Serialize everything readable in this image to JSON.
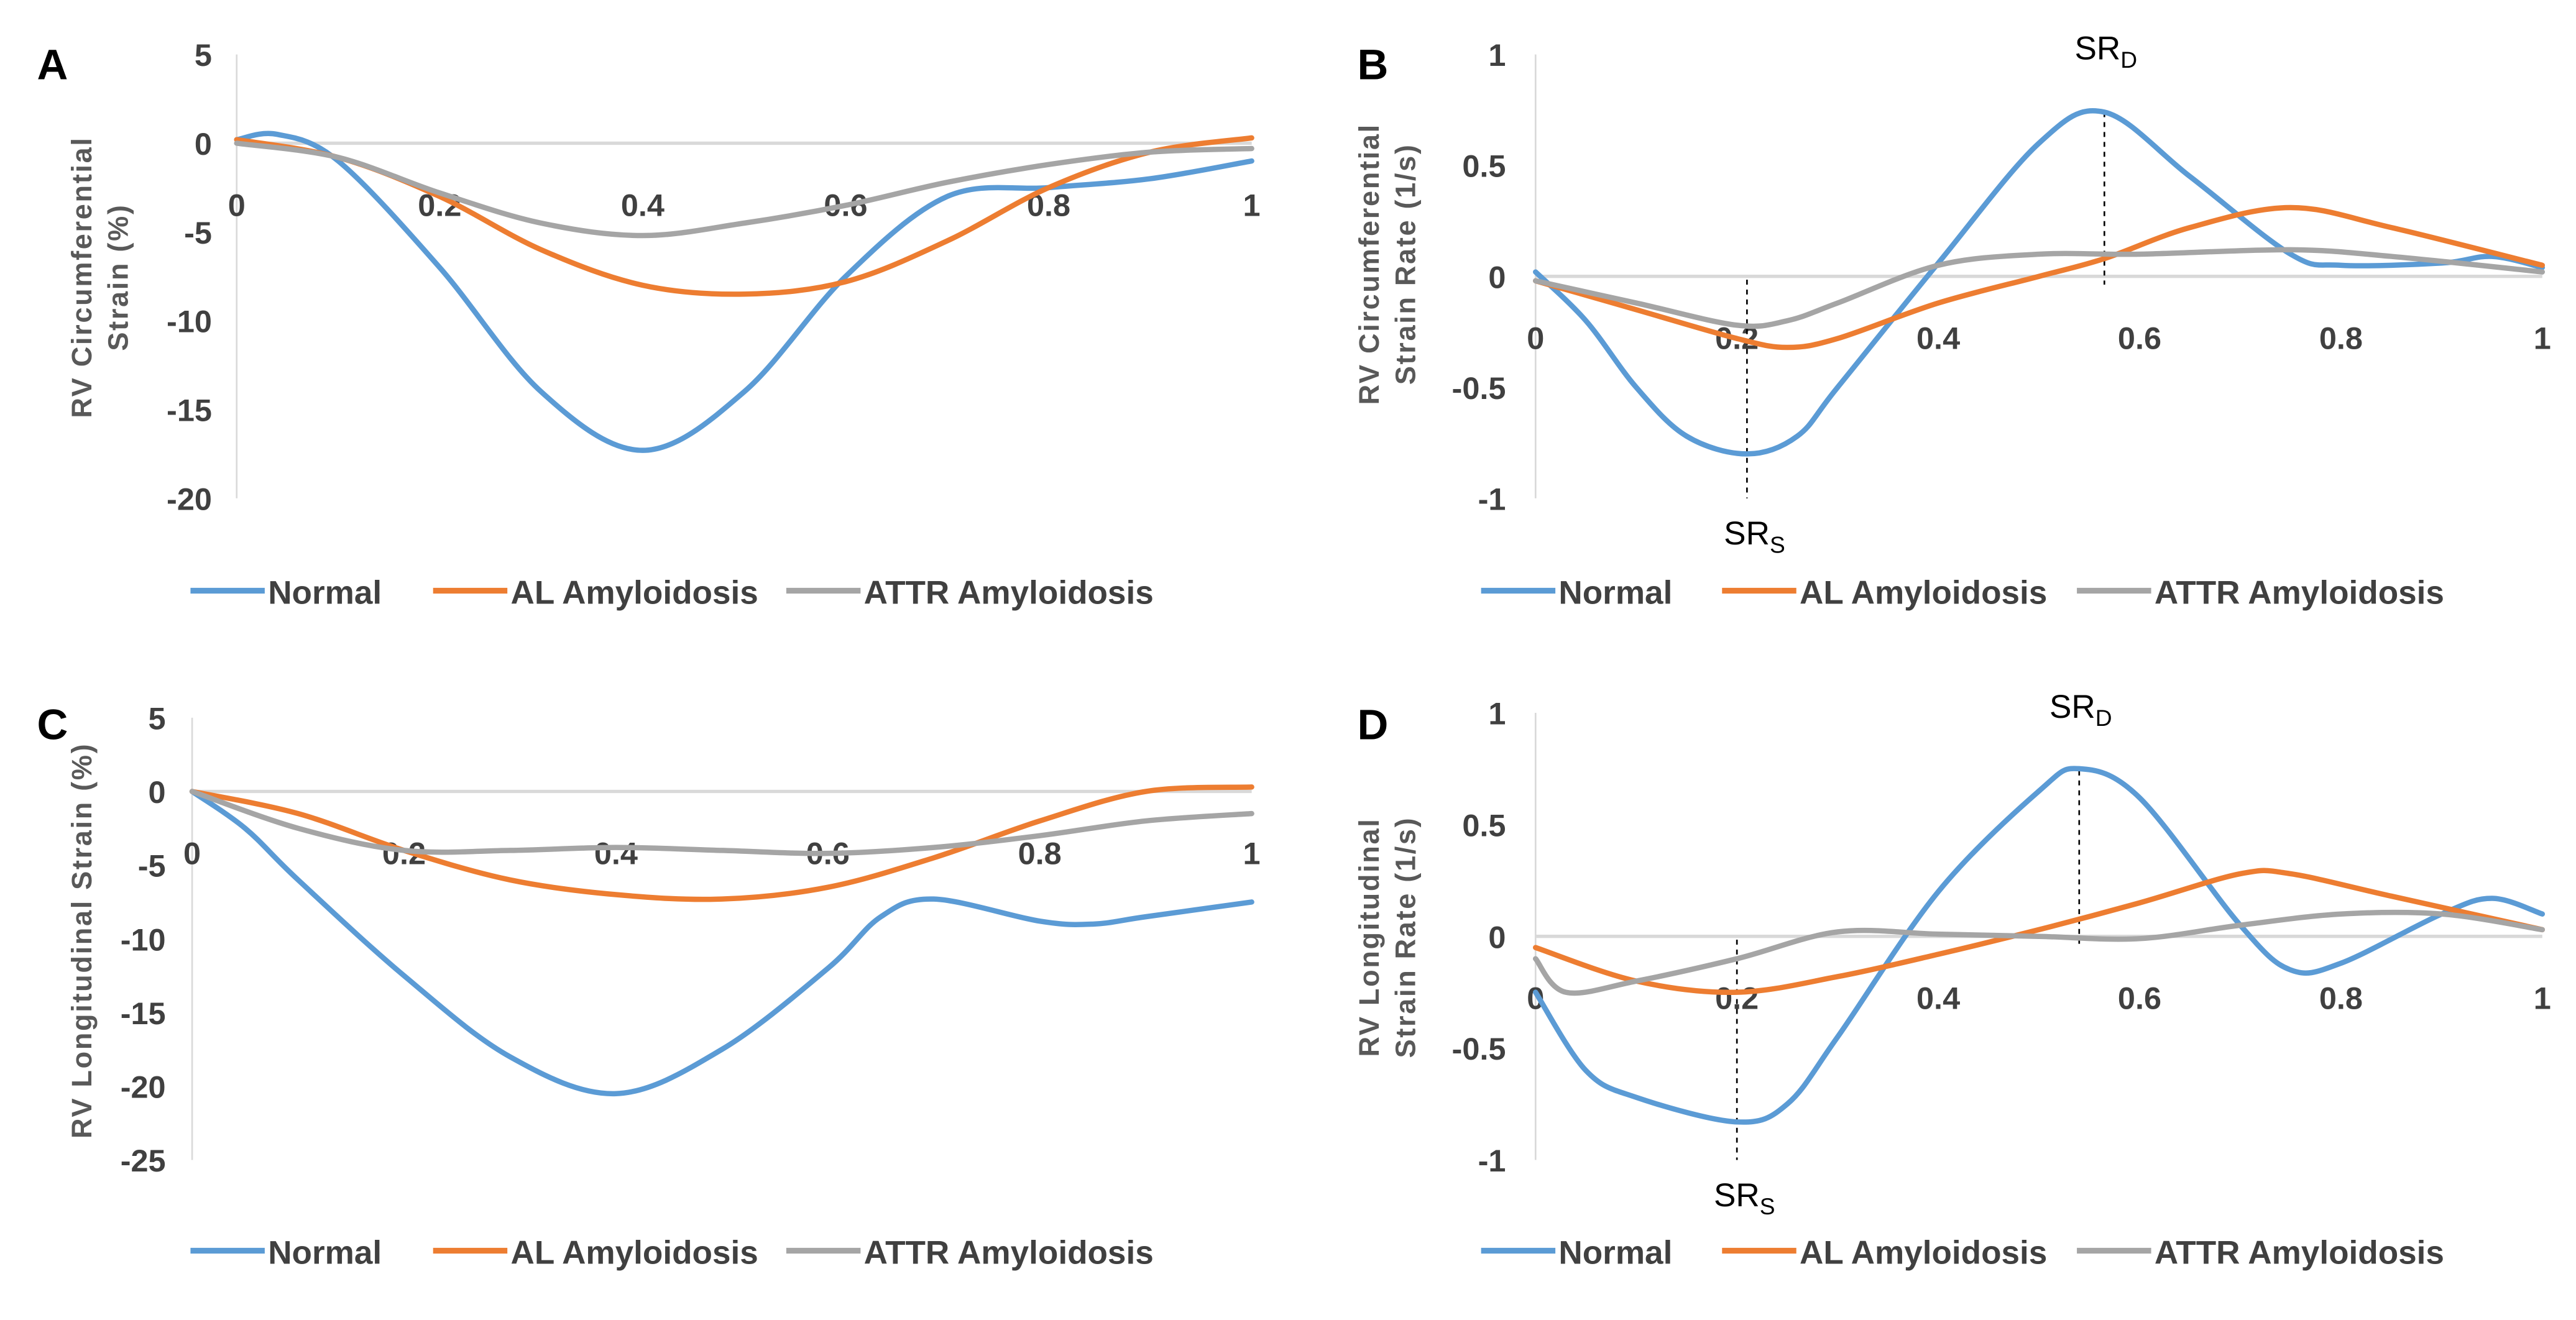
{
  "colors": {
    "Normal": "#5b9bd5",
    "AL Amyloidosis": "#ed7d31",
    "ATTR Amyloidosis": "#a5a5a5",
    "zero_line": "#d9d9d9"
  },
  "chart_data": [
    {
      "panel": "A",
      "type": "line",
      "title": "",
      "xlabel": "",
      "ylabel": "RV Circumferential Strain (%)",
      "ylabel_lines": [
        "RV Circumferential",
        "Strain (%)"
      ],
      "xlim": [
        0,
        1
      ],
      "ylim": [
        -20,
        5
      ],
      "xticks": [
        "0",
        "0.2",
        "0.4",
        "0.6",
        "0.8",
        "1"
      ],
      "xtick_values": [
        0,
        0.2,
        0.4,
        0.6,
        0.8,
        1
      ],
      "yticks": [
        "5",
        "0",
        "-5",
        "-10",
        "-15",
        "-20"
      ],
      "ytick_values": [
        5,
        0,
        -5,
        -10,
        -15,
        -20
      ],
      "legend": [
        "Normal",
        "AL Amyloidosis",
        "ATTR Amyloidosis"
      ],
      "legend_position": "bottom",
      "series": [
        {
          "name": "Normal",
          "points": [
            [
              0,
              0.2
            ],
            [
              0.04,
              0.5
            ],
            [
              0.1,
              -1
            ],
            [
              0.2,
              -7
            ],
            [
              0.3,
              -14
            ],
            [
              0.4,
              -17.3
            ],
            [
              0.5,
              -14
            ],
            [
              0.6,
              -7.5
            ],
            [
              0.7,
              -3
            ],
            [
              0.8,
              -2.5
            ],
            [
              0.9,
              -2
            ],
            [
              1,
              -1
            ]
          ]
        },
        {
          "name": "AL Amyloidosis",
          "points": [
            [
              0,
              0.2
            ],
            [
              0.1,
              -0.8
            ],
            [
              0.2,
              -3
            ],
            [
              0.3,
              -6
            ],
            [
              0.4,
              -8
            ],
            [
              0.5,
              -8.5
            ],
            [
              0.6,
              -7.8
            ],
            [
              0.7,
              -5.5
            ],
            [
              0.8,
              -2.5
            ],
            [
              0.9,
              -0.5
            ],
            [
              1,
              0.3
            ]
          ]
        },
        {
          "name": "ATTR Amyloidosis",
          "points": [
            [
              0,
              0
            ],
            [
              0.1,
              -0.8
            ],
            [
              0.2,
              -2.8
            ],
            [
              0.3,
              -4.5
            ],
            [
              0.4,
              -5.2
            ],
            [
              0.5,
              -4.5
            ],
            [
              0.6,
              -3.5
            ],
            [
              0.7,
              -2.2
            ],
            [
              0.8,
              -1.2
            ],
            [
              0.9,
              -0.5
            ],
            [
              1,
              -0.3
            ]
          ]
        }
      ],
      "annotations": []
    },
    {
      "panel": "B",
      "type": "line",
      "title": "",
      "xlabel": "",
      "ylabel": "RV Circumferential Strain Rate (1/s)",
      "ylabel_lines": [
        "RV Circumferential",
        "Strain Rate (1/s)"
      ],
      "xlim": [
        0,
        1
      ],
      "ylim": [
        -1,
        1
      ],
      "xticks": [
        "0",
        "0.2",
        "0.4",
        "0.6",
        "0.8",
        "1"
      ],
      "xtick_values": [
        0,
        0.2,
        0.4,
        0.6,
        0.8,
        1
      ],
      "yticks": [
        "1",
        "0.5",
        "0",
        "-0.5",
        "-1"
      ],
      "ytick_values": [
        1,
        0.5,
        0,
        -0.5,
        -1
      ],
      "legend": [
        "Normal",
        "AL Amyloidosis",
        "ATTR Amyloidosis"
      ],
      "legend_position": "bottom",
      "series": [
        {
          "name": "Normal",
          "points": [
            [
              0,
              0.02
            ],
            [
              0.05,
              -0.2
            ],
            [
              0.1,
              -0.5
            ],
            [
              0.15,
              -0.72
            ],
            [
              0.21,
              -0.8
            ],
            [
              0.26,
              -0.72
            ],
            [
              0.3,
              -0.5
            ],
            [
              0.4,
              0.06
            ],
            [
              0.5,
              0.6
            ],
            [
              0.565,
              0.74
            ],
            [
              0.65,
              0.45
            ],
            [
              0.75,
              0.1
            ],
            [
              0.8,
              0.05
            ],
            [
              0.9,
              0.06
            ],
            [
              0.95,
              0.09
            ],
            [
              1,
              0.04
            ]
          ]
        },
        {
          "name": "AL Amyloidosis",
          "points": [
            [
              0,
              -0.02
            ],
            [
              0.1,
              -0.15
            ],
            [
              0.2,
              -0.28
            ],
            [
              0.25,
              -0.32
            ],
            [
              0.3,
              -0.28
            ],
            [
              0.4,
              -0.12
            ],
            [
              0.5,
              0
            ],
            [
              0.565,
              0.08
            ],
            [
              0.65,
              0.22
            ],
            [
              0.75,
              0.31
            ],
            [
              0.85,
              0.22
            ],
            [
              1,
              0.05
            ]
          ]
        },
        {
          "name": "ATTR Amyloidosis",
          "points": [
            [
              0,
              -0.02
            ],
            [
              0.1,
              -0.12
            ],
            [
              0.2,
              -0.22
            ],
            [
              0.25,
              -0.2
            ],
            [
              0.3,
              -0.12
            ],
            [
              0.4,
              0.05
            ],
            [
              0.5,
              0.1
            ],
            [
              0.6,
              0.1
            ],
            [
              0.75,
              0.12
            ],
            [
              0.85,
              0.09
            ],
            [
              1,
              0.02
            ]
          ]
        }
      ],
      "annotations": [
        {
          "label": "SR",
          "sub": "S",
          "x": 0.21,
          "position": "below"
        },
        {
          "label": "SR",
          "sub": "D",
          "x": 0.565,
          "position": "above"
        }
      ]
    },
    {
      "panel": "C",
      "type": "line",
      "title": "",
      "xlabel": "",
      "ylabel": "RV Longitudinal Strain (%)",
      "ylabel_lines": [
        "RV Longitudinal Strain (%)"
      ],
      "xlim": [
        0,
        1
      ],
      "ylim": [
        -25,
        5
      ],
      "xticks": [
        "0",
        "0.2",
        "0.4",
        "0.6",
        "0.8",
        "1"
      ],
      "xtick_values": [
        0,
        0.2,
        0.4,
        0.6,
        0.8,
        1
      ],
      "yticks": [
        "5",
        "0",
        "-5",
        "-10",
        "-15",
        "-20",
        "-25"
      ],
      "ytick_values": [
        5,
        0,
        -5,
        -10,
        -15,
        -20,
        -25
      ],
      "legend": [
        "Normal",
        "AL Amyloidosis",
        "ATTR Amyloidosis"
      ],
      "legend_position": "bottom",
      "series": [
        {
          "name": "Normal",
          "points": [
            [
              0,
              0
            ],
            [
              0.05,
              -2.5
            ],
            [
              0.1,
              -6
            ],
            [
              0.2,
              -12.5
            ],
            [
              0.3,
              -18
            ],
            [
              0.4,
              -20.5
            ],
            [
              0.5,
              -17.5
            ],
            [
              0.6,
              -12
            ],
            [
              0.65,
              -8.5
            ],
            [
              0.7,
              -7.3
            ],
            [
              0.8,
              -8.8
            ],
            [
              0.85,
              -9
            ],
            [
              0.9,
              -8.5
            ],
            [
              1,
              -7.5
            ]
          ]
        },
        {
          "name": "AL Amyloidosis",
          "points": [
            [
              0,
              0
            ],
            [
              0.1,
              -1.5
            ],
            [
              0.2,
              -4
            ],
            [
              0.3,
              -6
            ],
            [
              0.4,
              -7
            ],
            [
              0.5,
              -7.3
            ],
            [
              0.6,
              -6.5
            ],
            [
              0.7,
              -4.5
            ],
            [
              0.8,
              -2
            ],
            [
              0.9,
              0
            ],
            [
              1,
              0.3
            ]
          ]
        },
        {
          "name": "ATTR Amyloidosis",
          "points": [
            [
              0,
              0
            ],
            [
              0.1,
              -2.5
            ],
            [
              0.2,
              -4
            ],
            [
              0.3,
              -4
            ],
            [
              0.4,
              -3.8
            ],
            [
              0.5,
              -4
            ],
            [
              0.6,
              -4.2
            ],
            [
              0.7,
              -3.8
            ],
            [
              0.8,
              -3
            ],
            [
              0.9,
              -2
            ],
            [
              1,
              -1.5
            ]
          ]
        }
      ],
      "annotations": []
    },
    {
      "panel": "D",
      "type": "line",
      "title": "",
      "xlabel": "",
      "ylabel": "RV Longitudinal Strain Rate (1/s)",
      "ylabel_lines": [
        "RV Longitudinal",
        "Strain Rate (1/s)"
      ],
      "xlim": [
        0,
        1
      ],
      "ylim": [
        -1,
        1
      ],
      "xticks": [
        "0",
        "0.2",
        "0.4",
        "0.6",
        "0.8",
        "1"
      ],
      "xtick_values": [
        0,
        0.2,
        0.4,
        0.6,
        0.8,
        1
      ],
      "yticks": [
        "1",
        "0.5",
        "0",
        "-0.5",
        "-1"
      ],
      "ytick_values": [
        1,
        0.5,
        0,
        -0.5,
        -1
      ],
      "legend": [
        "Normal",
        "AL Amyloidosis",
        "ATTR Amyloidosis"
      ],
      "legend_position": "bottom",
      "series": [
        {
          "name": "Normal",
          "points": [
            [
              0,
              -0.25
            ],
            [
              0.05,
              -0.6
            ],
            [
              0.1,
              -0.72
            ],
            [
              0.2,
              -0.83
            ],
            [
              0.25,
              -0.75
            ],
            [
              0.3,
              -0.45
            ],
            [
              0.4,
              0.2
            ],
            [
              0.5,
              0.65
            ],
            [
              0.54,
              0.75
            ],
            [
              0.6,
              0.62
            ],
            [
              0.7,
              0.05
            ],
            [
              0.75,
              -0.15
            ],
            [
              0.8,
              -0.12
            ],
            [
              0.9,
              0.1
            ],
            [
              0.95,
              0.17
            ],
            [
              1,
              0.1
            ]
          ]
        },
        {
          "name": "AL Amyloidosis",
          "points": [
            [
              0,
              -0.05
            ],
            [
              0.1,
              -0.2
            ],
            [
              0.2,
              -0.25
            ],
            [
              0.3,
              -0.18
            ],
            [
              0.4,
              -0.08
            ],
            [
              0.5,
              0.03
            ],
            [
              0.6,
              0.15
            ],
            [
              0.7,
              0.28
            ],
            [
              0.75,
              0.28
            ],
            [
              0.85,
              0.18
            ],
            [
              1,
              0.03
            ]
          ]
        },
        {
          "name": "ATTR Amyloidosis",
          "points": [
            [
              0,
              -0.1
            ],
            [
              0.03,
              -0.25
            ],
            [
              0.1,
              -0.2
            ],
            [
              0.2,
              -0.1
            ],
            [
              0.3,
              0.02
            ],
            [
              0.4,
              0.01
            ],
            [
              0.5,
              0
            ],
            [
              0.6,
              -0.01
            ],
            [
              0.7,
              0.05
            ],
            [
              0.8,
              0.1
            ],
            [
              0.9,
              0.1
            ],
            [
              1,
              0.03
            ]
          ]
        }
      ],
      "annotations": [
        {
          "label": "SR",
          "sub": "S",
          "x": 0.2,
          "position": "below"
        },
        {
          "label": "SR",
          "sub": "D",
          "x": 0.54,
          "position": "above"
        }
      ]
    }
  ]
}
